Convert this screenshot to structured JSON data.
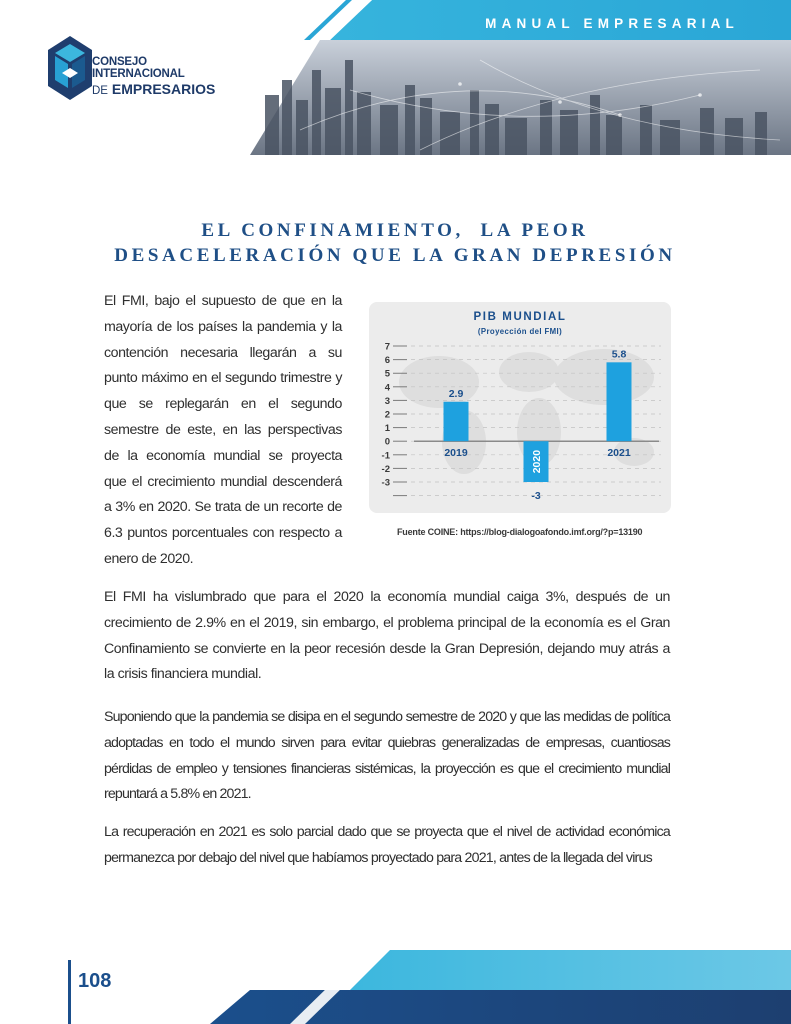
{
  "header": {
    "title": "MANUAL EMPRESARIAL",
    "brand_color": "#1b4f8c",
    "accent_color": "#3cb7de"
  },
  "logo": {
    "icon": "cie-logo-icon",
    "line1": "CONSEJO INTERNACIONAL",
    "line2_prefix": "DE",
    "line2_strong": "EMPRESARIOS"
  },
  "article": {
    "heading_line1": "EL CONFINAMIENTO,  LA PEOR",
    "heading_line2": "DESACELERACIÓN QUE LA GRAN DEPRESIÓN",
    "intro": "El FMI, bajo el supuesto de que en la mayoría de los países la pandemia y la contención necesaria llegarán a su punto máximo en el segundo trimestre y que se replegarán en el segundo semestre de este, en las perspectivas de la economía mundial se proyecta que el crecimiento mundial descenderá a 3% en 2020. Se trata de un recorte de 6.3 puntos porcentuales con respecto a enero de 2020.",
    "paragraph1": "El FMI ha vislumbrado que para el 2020 la economía mundial caiga 3%, después de un crecimiento de 2.9% en el 2019, sin embargo, el problema principal de la economía  es el Gran Confinamiento se convierte en la peor recesión desde la Gran Depresión, dejando muy atrás a la crisis financiera mundial.",
    "paragraph2": "Suponiendo que la pandemia se disipa en el segundo semestre de 2020 y que las medidas de política adoptadas en todo el mundo sirven para evitar quiebras generalizadas de empresas, cuantiosas pérdidas de empleo y tensiones financieras sistémicas, la proyección es que el crecimiento mundial repuntará a 5.8% en 2021.",
    "paragraph3": "La recuperación en 2021 es solo parcial dado que se proyecta que el nivel de actividad económica permanezca por debajo del nivel que habíamos proyectado para 2021, antes de la llegada del virus"
  },
  "chart_data": {
    "type": "bar",
    "title": "PIB MUNDIAL",
    "subtitle": "(Proyección del FMI)",
    "categories": [
      "2019",
      "2020",
      "2021"
    ],
    "values": [
      2.9,
      -3,
      5.8
    ],
    "value_labels": [
      "2.9",
      "-3",
      "5.8"
    ],
    "y_ticks": [
      "7",
      "6",
      "5",
      "4",
      "3",
      "2",
      "1",
      "0",
      "-1",
      "-2",
      "-3",
      ""
    ],
    "ylim": [
      -4,
      7
    ],
    "bar_color": "#1ea1df",
    "label_color": "#1b4f8c",
    "grid": true,
    "source": "Fuente COINE: https://blog-dialogoafondo.imf.org/?p=13190"
  },
  "footer": {
    "page_number": "108"
  }
}
